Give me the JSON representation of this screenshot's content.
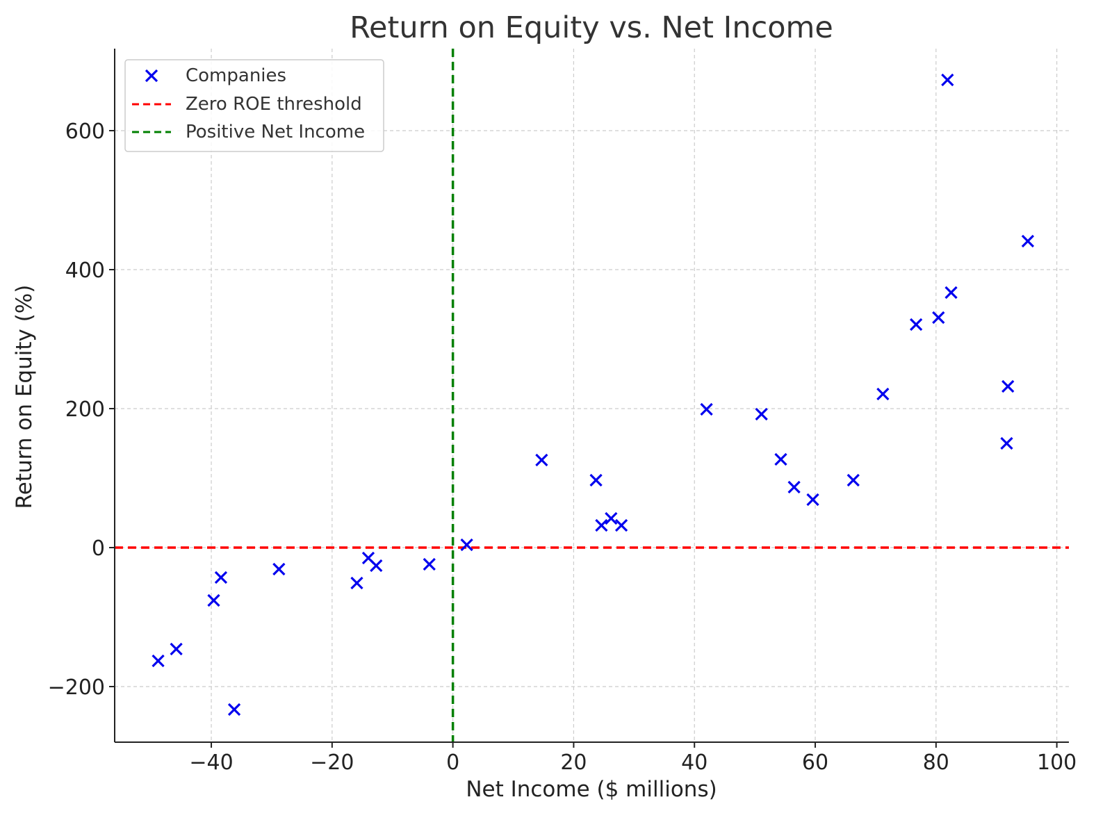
{
  "chart_data": {
    "type": "scatter",
    "title": "Return on Equity vs. Net Income",
    "xlabel": "Net Income ($ millions)",
    "ylabel": "Return on Equity (%)",
    "xlim": [
      -56,
      102
    ],
    "ylim": [
      -280,
      718
    ],
    "xticks": [
      -40,
      -20,
      0,
      20,
      40,
      60,
      80,
      100
    ],
    "xtick_labels": [
      "−40",
      "−20",
      "0",
      "20",
      "40",
      "60",
      "80",
      "100"
    ],
    "yticks": [
      -200,
      0,
      200,
      400,
      600
    ],
    "ytick_labels": [
      "−200",
      "0",
      "200",
      "400",
      "600"
    ],
    "grid": true,
    "legend_position": "top-left",
    "series": [
      {
        "name": "Companies",
        "marker": "x",
        "color": "#0000ee",
        "points": [
          {
            "x": -48.8,
            "y": -163
          },
          {
            "x": -45.8,
            "y": -146
          },
          {
            "x": -39.6,
            "y": -76
          },
          {
            "x": -38.4,
            "y": -43
          },
          {
            "x": -36.2,
            "y": -233
          },
          {
            "x": -28.8,
            "y": -31
          },
          {
            "x": -15.9,
            "y": -51
          },
          {
            "x": -14.0,
            "y": -15
          },
          {
            "x": -12.7,
            "y": -26
          },
          {
            "x": -3.9,
            "y": -24
          },
          {
            "x": 2.3,
            "y": 4
          },
          {
            "x": 14.7,
            "y": 126
          },
          {
            "x": 23.7,
            "y": 97
          },
          {
            "x": 24.6,
            "y": 32
          },
          {
            "x": 26.2,
            "y": 42
          },
          {
            "x": 27.9,
            "y": 32
          },
          {
            "x": 42.0,
            "y": 199
          },
          {
            "x": 51.1,
            "y": 192
          },
          {
            "x": 54.3,
            "y": 127
          },
          {
            "x": 56.5,
            "y": 87
          },
          {
            "x": 59.6,
            "y": 69
          },
          {
            "x": 66.3,
            "y": 97
          },
          {
            "x": 71.2,
            "y": 221
          },
          {
            "x": 76.7,
            "y": 321
          },
          {
            "x": 80.4,
            "y": 331
          },
          {
            "x": 81.9,
            "y": 673
          },
          {
            "x": 82.5,
            "y": 367
          },
          {
            "x": 91.7,
            "y": 150
          },
          {
            "x": 91.9,
            "y": 232
          },
          {
            "x": 95.2,
            "y": 441
          }
        ]
      },
      {
        "name": "Zero ROE threshold",
        "type": "hline",
        "y": 0,
        "color": "#ff0000",
        "style": "dashed"
      },
      {
        "name": "Positive Net Income",
        "type": "vline",
        "x": 0,
        "color": "#008000",
        "style": "dashed"
      }
    ]
  }
}
